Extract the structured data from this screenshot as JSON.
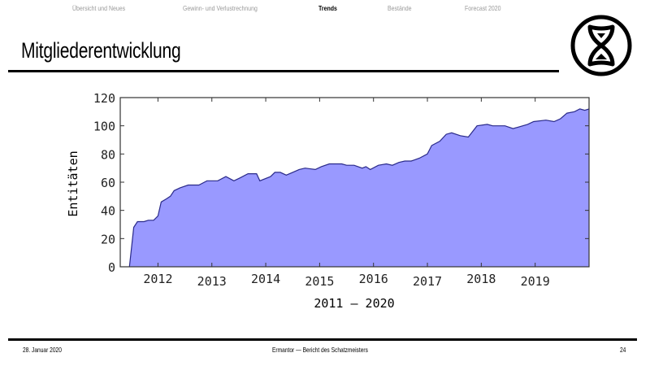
{
  "nav": {
    "items": [
      {
        "label": "Übersicht und Neues",
        "active": false
      },
      {
        "label": "Gewinn- und Verlustrechnung",
        "active": false
      },
      {
        "label": "Trends",
        "active": true
      },
      {
        "label": "Bestände",
        "active": false
      },
      {
        "label": "Forecast 2020",
        "active": false
      }
    ]
  },
  "slide": {
    "title": "Mitgliederentwicklung",
    "logo_icon": "hourglass-circle-logo"
  },
  "footer": {
    "date": "28. Januar 2020",
    "center": "Ermantor — Bericht des Schatzmeisters",
    "page": "24"
  },
  "colors": {
    "fill": "#9999ff",
    "line": "#2a2a8a",
    "axis": "#333333"
  },
  "chart_data": {
    "type": "area",
    "title": "",
    "xlabel": "2011 – 2020",
    "ylabel": "Entitäten",
    "xlim": [
      2011.3,
      2020.0
    ],
    "ylim": [
      0,
      120
    ],
    "yticks": [
      0,
      20,
      40,
      60,
      80,
      100,
      120
    ],
    "xticks": [
      2012,
      2013,
      2014,
      2015,
      2016,
      2017,
      2018,
      2019
    ],
    "grid": false,
    "legend": null,
    "series": [
      {
        "name": "Entitäten",
        "x": [
          2011.47,
          2011.55,
          2011.62,
          2011.74,
          2011.82,
          2011.92,
          2012.0,
          2012.06,
          2012.15,
          2012.23,
          2012.3,
          2012.41,
          2012.56,
          2012.76,
          2012.91,
          2013.11,
          2013.26,
          2013.41,
          2013.52,
          2013.67,
          2013.83,
          2013.89,
          2014.09,
          2014.17,
          2014.27,
          2014.38,
          2014.5,
          2014.62,
          2014.73,
          2014.92,
          2015.03,
          2015.18,
          2015.41,
          2015.5,
          2015.64,
          2015.79,
          2015.86,
          2015.94,
          2016.09,
          2016.24,
          2016.35,
          2016.47,
          2016.58,
          2016.7,
          2016.85,
          2017.0,
          2017.08,
          2017.23,
          2017.35,
          2017.45,
          2017.61,
          2017.76,
          2017.92,
          2018.11,
          2018.21,
          2018.44,
          2018.59,
          2018.86,
          2018.97,
          2019.2,
          2019.35,
          2019.47,
          2019.59,
          2019.73,
          2019.83,
          2019.92,
          2020.0
        ],
        "values": [
          0,
          28,
          32,
          32,
          33,
          33,
          36,
          46,
          48,
          50,
          54,
          56,
          58,
          58,
          61,
          61,
          64,
          61,
          63,
          66,
          66,
          61,
          64,
          67,
          67,
          65,
          67,
          69,
          70,
          69,
          71,
          73,
          73,
          72,
          72,
          70,
          71,
          69,
          72,
          73,
          72,
          74,
          75,
          75,
          77,
          80,
          86,
          89,
          94,
          95,
          93,
          92,
          100,
          101,
          100,
          100,
          98,
          101,
          103,
          104,
          103,
          105,
          109,
          110,
          112,
          111,
          112
        ]
      }
    ]
  }
}
